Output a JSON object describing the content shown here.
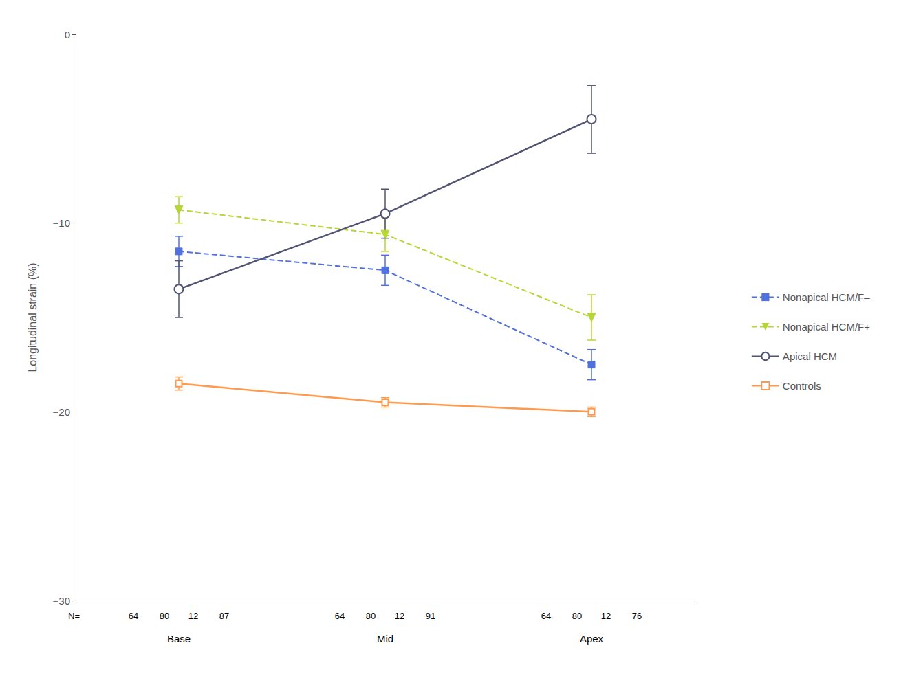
{
  "chart_data": {
    "type": "line",
    "ylabel": "Longitudinal strain (%)",
    "categories": [
      "Base",
      "Mid",
      "Apex"
    ],
    "series": [
      {
        "name": "Nonapical HCM/F–",
        "values": [
          -11.5,
          -12.5,
          -17.5
        ],
        "errors": [
          0.8,
          0.8,
          0.8
        ],
        "marker": "square",
        "line_style": "dashed"
      },
      {
        "name": "Nonapical HCM/F+",
        "values": [
          -9.3,
          -10.6,
          -15.0
        ],
        "errors": [
          0.7,
          0.9,
          1.2
        ],
        "marker": "triangle_down",
        "line_style": "dashed"
      },
      {
        "name": "Apical HCM",
        "values": [
          -13.5,
          -9.5,
          -4.5
        ],
        "errors": [
          1.5,
          1.3,
          1.8
        ],
        "marker": "open_circle",
        "line_style": "solid"
      },
      {
        "name": "Controls",
        "values": [
          -18.5,
          -19.5,
          -20.0
        ],
        "errors": [
          0.35,
          0.25,
          0.25
        ],
        "marker": "open_square",
        "line_style": "solid"
      }
    ],
    "ylim": [
      -30,
      0
    ],
    "yticks": [
      0,
      {
        "value": -10,
        "label": "−10"
      },
      {
        "value": -20,
        "label": "−20"
      },
      {
        "value": -30,
        "label": "−30"
      }
    ],
    "grid": false,
    "legend": "right",
    "annotations": {
      "label": "N=",
      "values": [
        [
          64,
          80,
          12,
          87
        ],
        [
          64,
          80,
          12,
          91
        ],
        [
          64,
          80,
          12,
          76
        ]
      ]
    }
  }
}
